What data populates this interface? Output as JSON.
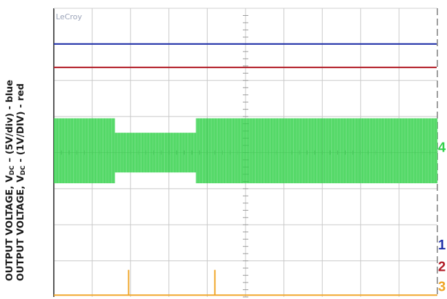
{
  "ylabel": {
    "line1_prefix": "OUTPUT VOLTAGE, V",
    "line1_sub": "DC",
    "line1_suffix": " – (5V/div) - blue",
    "line2_prefix": "OUTPUT VOLTAGE, V",
    "line2_sub": "DC",
    "line2_suffix": " - (1V/DIV) - red"
  },
  "scope": {
    "brand": "LeCroy",
    "grid": {
      "xdiv": 10,
      "ydiv": 8
    },
    "colors": {
      "background": "#ffffff",
      "grid": "#c8c8c8",
      "frame": "#555555",
      "blue": "#1f2fa8",
      "red": "#b21e28",
      "green": "#33d14a",
      "orange": "#f0a526"
    }
  },
  "chart_data": {
    "type": "line",
    "xlabel": "",
    "ylabel": "OUTPUT VOLTAGE, VDC – (5V/div) - blue / OUTPUT VOLTAGE, VDC - (1V/DIV) - red",
    "grid": true,
    "xlim": [
      0,
      10
    ],
    "ylim": [
      0,
      8
    ],
    "series": [
      {
        "name": "1",
        "color": "#1f2fa8",
        "x": [
          0,
          10
        ],
        "y": [
          7.0,
          7.0
        ]
      },
      {
        "name": "2",
        "color": "#b21e28",
        "x": [
          0,
          10
        ],
        "y": [
          6.35,
          6.35
        ]
      },
      {
        "name": "4",
        "color": "#33d14a",
        "style": "envelope",
        "x": [
          0,
          1.6,
          1.6,
          3.7,
          3.7,
          10
        ],
        "y_upper": [
          4.95,
          4.95,
          4.55,
          4.55,
          4.95,
          4.95
        ],
        "y_lower": [
          3.15,
          3.15,
          3.45,
          3.45,
          3.15,
          3.15
        ]
      },
      {
        "name": "3",
        "color": "#f0a526",
        "style": "impulses",
        "baseline": 0.05,
        "x": [
          1.95,
          4.2
        ],
        "y": [
          0.75,
          0.75
        ]
      }
    ],
    "markers": [
      {
        "label": "4",
        "color": "#33d14a",
        "y": 4.15
      },
      {
        "label": "1",
        "color": "#1f2fa8",
        "y": 1.45
      },
      {
        "label": "2",
        "color": "#b21e28",
        "y": 0.85
      },
      {
        "label": "3",
        "color": "#f0a526",
        "y": 0.3
      }
    ]
  }
}
